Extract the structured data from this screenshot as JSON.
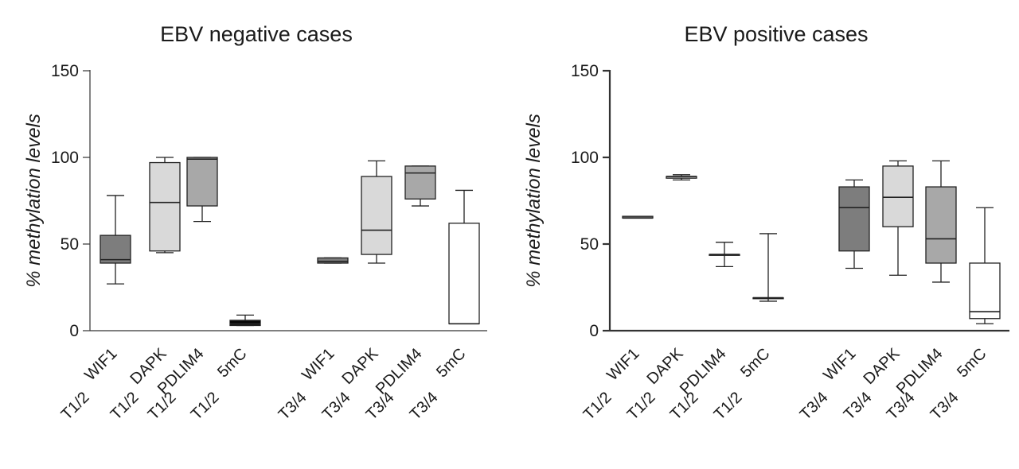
{
  "chart_data": [
    {
      "type": "box",
      "title": "EBV negative cases",
      "ylabel": "% methylation levels",
      "ylim": [
        0,
        150
      ],
      "yticks": [
        0,
        50,
        100,
        150
      ],
      "groups": [
        {
          "stage": "T1/2",
          "boxes": [
            {
              "gene": "WIF1",
              "min": 27,
              "q1": 39,
              "median": 41,
              "q3": 55,
              "max": 78,
              "fill": "#7d7d7d"
            },
            {
              "gene": "DAPK",
              "min": 45,
              "q1": 46,
              "median": 74,
              "q3": 97,
              "max": 100,
              "fill": "#d9d9d9"
            },
            {
              "gene": "PDLIM4",
              "min": 63,
              "q1": 72,
              "median": 99,
              "q3": 100,
              "max": 100,
              "fill": "#a8a8a8"
            },
            {
              "gene": "5mC",
              "min": 3,
              "q1": 3,
              "median": 5,
              "q3": 6,
              "max": 9,
              "fill": "#1c1c1c"
            }
          ]
        },
        {
          "stage": "T3/4",
          "boxes": [
            {
              "gene": "WIF1",
              "min": 39,
              "q1": 39,
              "median": 40,
              "q3": 42,
              "max": 42,
              "fill": "#7d7d7d"
            },
            {
              "gene": "DAPK",
              "min": 39,
              "q1": 44,
              "median": 58,
              "q3": 89,
              "max": 98,
              "fill": "#d9d9d9"
            },
            {
              "gene": "PDLIM4",
              "min": 72,
              "q1": 76,
              "median": 91,
              "q3": 95,
              "max": 95,
              "fill": "#a8a8a8"
            },
            {
              "gene": "5mC",
              "min": 4,
              "q1": 4,
              "median": 4,
              "q3": 62,
              "max": 81,
              "fill": "#ffffff"
            }
          ]
        }
      ]
    },
    {
      "type": "box",
      "title": "EBV positive cases",
      "ylabel": "% methylation levels",
      "ylim": [
        0,
        150
      ],
      "yticks": [
        0,
        50,
        100,
        150
      ],
      "groups": [
        {
          "stage": "T1/2",
          "boxes": [
            {
              "gene": "WIF1",
              "min": 65,
              "q1": 65,
              "median": 65,
              "q3": 66,
              "max": 66,
              "fill": "#7d7d7d"
            },
            {
              "gene": "DAPK",
              "min": 87,
              "q1": 88,
              "median": 89,
              "q3": 89,
              "max": 90,
              "fill": "#d9d9d9"
            },
            {
              "gene": "PDLIM4",
              "min": 37,
              "q1": 44,
              "median": 44,
              "q3": 44,
              "max": 51,
              "fill": "#a8a8a8"
            },
            {
              "gene": "5mC",
              "min": 17,
              "q1": 19,
              "median": 19,
              "q3": 19,
              "max": 56,
              "fill": "#ffffff"
            }
          ]
        },
        {
          "stage": "T3/4",
          "boxes": [
            {
              "gene": "WIF1",
              "min": 36,
              "q1": 46,
              "median": 71,
              "q3": 83,
              "max": 87,
              "fill": "#7d7d7d"
            },
            {
              "gene": "DAPK",
              "min": 32,
              "q1": 60,
              "median": 77,
              "q3": 95,
              "max": 98,
              "fill": "#d9d9d9"
            },
            {
              "gene": "PDLIM4",
              "min": 28,
              "q1": 39,
              "median": 53,
              "q3": 83,
              "max": 98,
              "fill": "#a8a8a8"
            },
            {
              "gene": "5mC",
              "min": 4,
              "q1": 7,
              "median": 11,
              "q3": 39,
              "max": 71,
              "fill": "#ffffff"
            }
          ]
        }
      ]
    }
  ]
}
